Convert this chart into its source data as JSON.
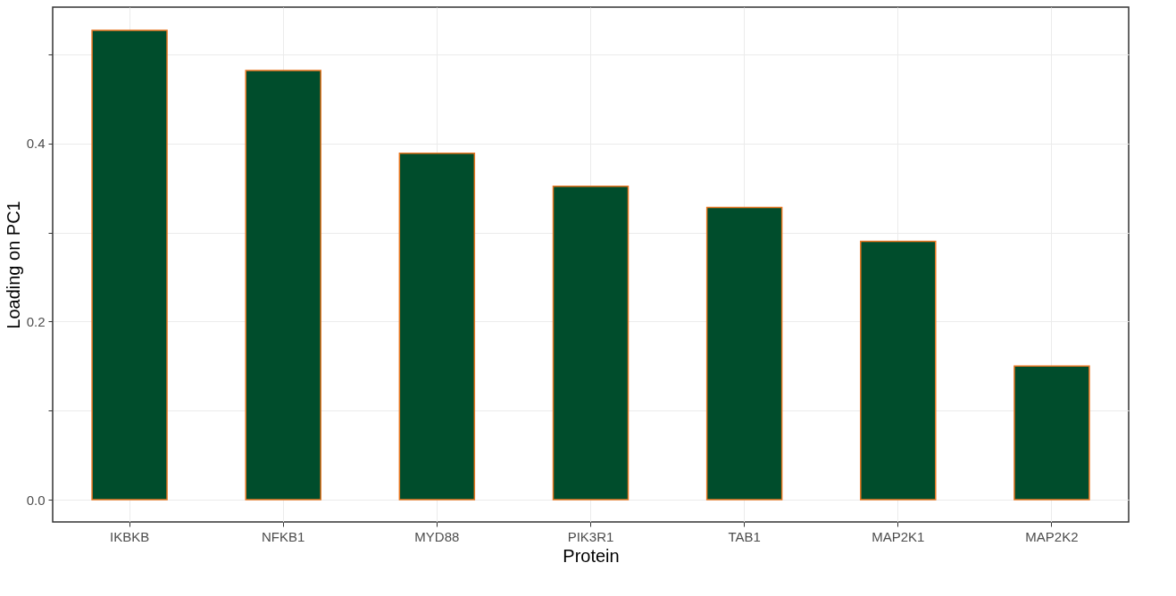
{
  "chart_data": {
    "type": "bar",
    "xlabel": "Protein",
    "ylabel": "Loading on PC1",
    "categories": [
      "IKBKB",
      "NFKB1",
      "MYD88",
      "PIK3R1",
      "TAB1",
      "MAP2K1",
      "MAP2K2"
    ],
    "values": [
      0.527,
      0.482,
      0.389,
      0.352,
      0.328,
      0.29,
      0.15
    ],
    "color": "#004d2c",
    "ylim": [
      -0.025,
      0.553
    ],
    "yticks": [
      {
        "value": 0,
        "label": "0.0"
      },
      {
        "value": 0.1,
        "label": null
      },
      0.2,
      {
        "value": 0.3,
        "label": null
      },
      0.4,
      {
        "value": 0.5,
        "label": null
      }
    ],
    "grid": true
  }
}
